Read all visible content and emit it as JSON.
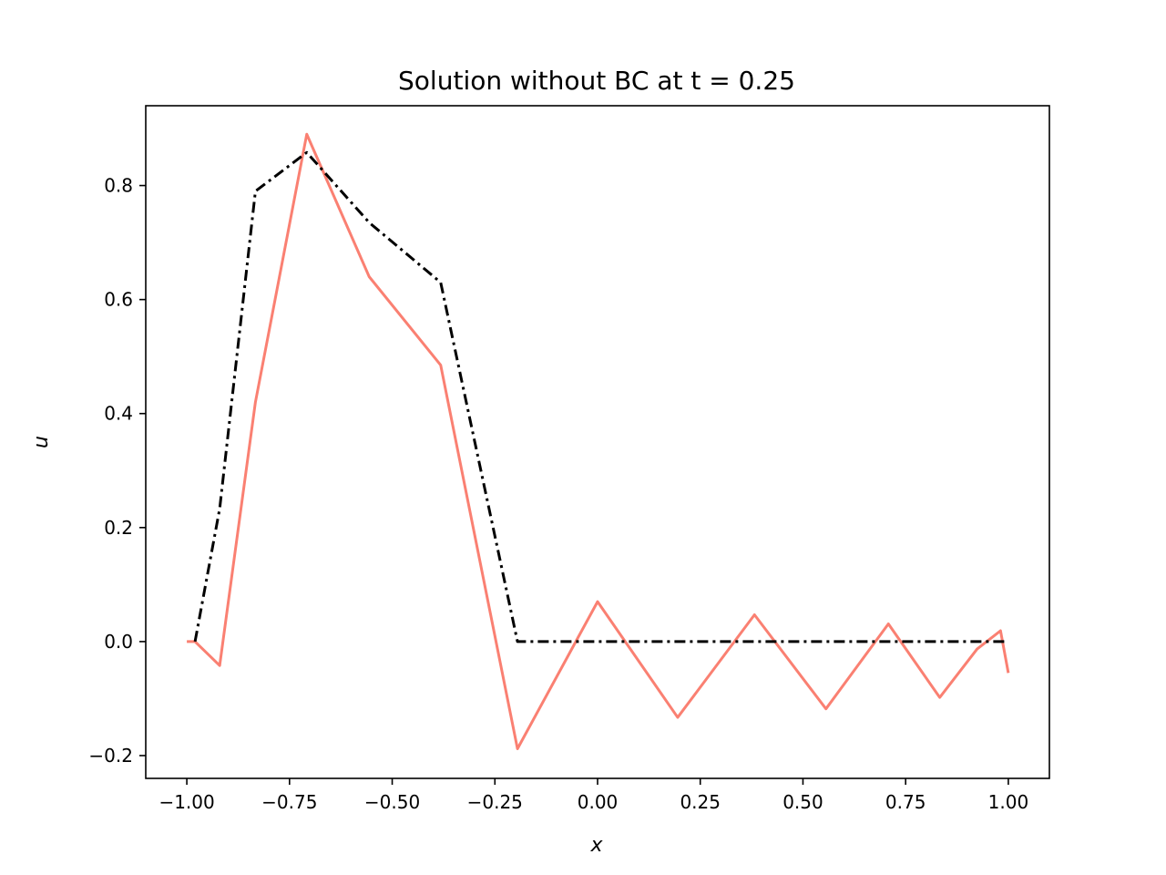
{
  "chart_data": {
    "type": "line",
    "title": "Solution without BC at t = 0.25",
    "xlabel": "x",
    "ylabel": "u",
    "xlim": [
      -1.1,
      1.1
    ],
    "ylim": [
      -0.24,
      0.94
    ],
    "xticks": [
      -1.0,
      -0.75,
      -0.5,
      -0.25,
      0.0,
      0.25,
      0.5,
      0.75,
      1.0
    ],
    "xtick_labels": [
      "−1.00",
      "−0.75",
      "−0.50",
      "−0.25",
      "0.00",
      "0.25",
      "0.50",
      "0.75",
      "1.00"
    ],
    "yticks": [
      -0.2,
      0.0,
      0.2,
      0.4,
      0.6,
      0.8
    ],
    "ytick_labels": [
      "−0.2",
      "0.0",
      "0.2",
      "0.4",
      "0.6",
      "0.8"
    ],
    "grid": false,
    "legend": "none",
    "series": [
      {
        "color": "#fa8072",
        "style": "solid",
        "x": [
          -1.0,
          -0.98,
          -0.92,
          -0.833,
          -0.708,
          -0.556,
          -0.382,
          -0.195,
          0.0,
          0.195,
          0.382,
          0.556,
          0.708,
          0.833,
          0.924,
          0.981,
          1.0
        ],
        "y": [
          0.0,
          0.0,
          -0.042,
          0.42,
          0.89,
          0.64,
          0.485,
          -0.188,
          0.07,
          -0.133,
          0.047,
          -0.118,
          0.031,
          -0.098,
          -0.013,
          0.019,
          -0.055
        ]
      },
      {
        "color": "#000000",
        "style": "dashdot",
        "x": [
          -0.98,
          -0.92,
          -0.833,
          -0.708,
          -0.556,
          -0.382,
          -0.195,
          0.0,
          0.195,
          0.382,
          0.556,
          0.708,
          0.833,
          0.924,
          0.981,
          1.0
        ],
        "y": [
          0.0,
          0.233,
          0.79,
          0.858,
          0.735,
          0.63,
          0.0,
          0.0,
          0.0,
          0.0,
          0.0,
          0.0,
          0.0,
          0.0,
          0.0,
          0.0
        ]
      }
    ]
  }
}
